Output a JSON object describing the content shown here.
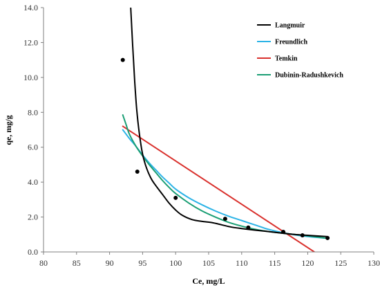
{
  "chart_data": {
    "type": "scatter",
    "xlabel": "Ce, mg/L",
    "ylabel": "qe, mg/g",
    "xlim": [
      80,
      130
    ],
    "ylim": [
      0,
      14
    ],
    "x_ticks": [
      80,
      85,
      90,
      95,
      100,
      105,
      110,
      115,
      120,
      125,
      130
    ],
    "y_ticks": [
      "0.0",
      "2.0",
      "4.0",
      "6.0",
      "8.0",
      "10.0",
      "12.0",
      "14.0"
    ],
    "grid": false,
    "legend_position": "top-right",
    "points": {
      "color": "#000000",
      "x": [
        92.0,
        94.2,
        100.0,
        107.5,
        111.0,
        116.3,
        119.2,
        123.0
      ],
      "y": [
        11.0,
        4.6,
        3.1,
        1.9,
        1.4,
        1.15,
        0.95,
        0.8
      ]
    },
    "series": [
      {
        "name": "Langmuir",
        "color": "#000000",
        "x": [
          93.2,
          93.5,
          93.8,
          94.1,
          94.5,
          95.0,
          95.6,
          96.3,
          97.0,
          98.0,
          99.0,
          100.0,
          101.0,
          102.5,
          104.0,
          105.5,
          107.0,
          108.5,
          110.0,
          112.0,
          114.0,
          116.0,
          118.0,
          120.0,
          123.0
        ],
        "y": [
          14.0,
          11.8,
          9.8,
          8.2,
          6.8,
          5.6,
          4.8,
          4.2,
          3.8,
          3.3,
          2.8,
          2.4,
          2.1,
          1.85,
          1.75,
          1.68,
          1.55,
          1.42,
          1.34,
          1.25,
          1.17,
          1.08,
          1.0,
          0.95,
          0.88
        ]
      },
      {
        "name": "Freundlich",
        "color": "#2bb3e6",
        "x": [
          92.0,
          93.0,
          94.0,
          95.0,
          96.0,
          97.0,
          98.0,
          99.0,
          100.0,
          102.0,
          104.0,
          106.0,
          108.0,
          110.0,
          112.0,
          114.0,
          116.0,
          118.0,
          120.0,
          123.0
        ],
        "y": [
          7.0,
          6.5,
          6.05,
          5.55,
          5.1,
          4.7,
          4.3,
          3.95,
          3.6,
          3.1,
          2.7,
          2.35,
          2.05,
          1.8,
          1.55,
          1.3,
          1.12,
          0.98,
          0.88,
          0.78
        ]
      },
      {
        "name": "Temkin",
        "color": "#d9302c",
        "x": [
          92.0,
          121.0
        ],
        "y": [
          7.2,
          0.0
        ]
      },
      {
        "name": "Dubinin-Radushkevich",
        "color": "#1a9e74",
        "x": [
          92.0,
          92.5,
          93.0,
          94.0,
          95.0,
          96.0,
          97.0,
          98.0,
          99.0,
          100.0,
          102.0,
          104.0,
          106.0,
          108.0,
          110.0,
          112.0,
          114.0,
          116.0,
          118.0,
          120.0,
          123.0
        ],
        "y": [
          7.85,
          7.3,
          6.75,
          6.05,
          5.5,
          5.0,
          4.55,
          4.1,
          3.7,
          3.35,
          2.8,
          2.35,
          2.0,
          1.7,
          1.48,
          1.3,
          1.17,
          1.08,
          1.0,
          0.92,
          0.78
        ]
      }
    ]
  }
}
